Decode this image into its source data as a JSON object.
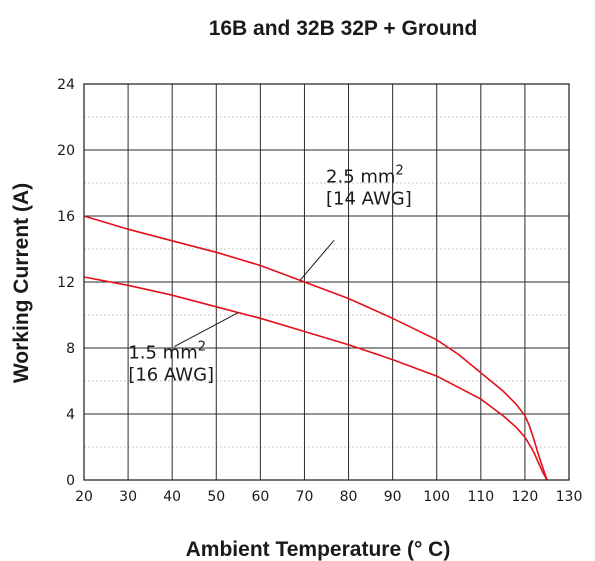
{
  "chart_data": {
    "type": "line",
    "title": "16B and 32B 32P + Ground",
    "xlabel": "Ambient Temperature (° C)",
    "ylabel": "Working Current (A)",
    "xlim": [
      20,
      130
    ],
    "ylim": [
      0,
      24
    ],
    "x_ticks": [
      20,
      30,
      40,
      50,
      60,
      70,
      80,
      90,
      100,
      110,
      120,
      130
    ],
    "y_ticks": [
      0,
      4,
      8,
      12,
      16,
      20,
      24
    ],
    "grid": true,
    "series": [
      {
        "name": "2.5 mm2 [14 AWG]",
        "color": "#e3101b",
        "x": [
          20,
          30,
          40,
          50,
          60,
          70,
          80,
          90,
          100,
          105,
          110,
          115,
          118,
          120,
          121,
          122,
          123,
          124,
          125
        ],
        "y": [
          16.0,
          15.2,
          14.5,
          13.8,
          13.0,
          12.0,
          11.0,
          9.8,
          8.5,
          7.6,
          6.5,
          5.4,
          4.6,
          3.9,
          3.3,
          2.5,
          1.6,
          0.8,
          0.0
        ]
      },
      {
        "name": "1.5 mm2 [16 AWG]",
        "color": "#e3101b",
        "x": [
          20,
          30,
          40,
          50,
          60,
          70,
          80,
          90,
          100,
          105,
          110,
          115,
          118,
          120,
          122,
          123,
          124,
          125
        ],
        "y": [
          12.3,
          11.8,
          11.2,
          10.5,
          9.8,
          9.0,
          8.2,
          7.3,
          6.3,
          5.6,
          4.9,
          3.9,
          3.2,
          2.6,
          1.7,
          1.1,
          0.5,
          0.0
        ]
      }
    ],
    "annotations": [
      {
        "line1": "2.5 mm",
        "sup": "2",
        "line2": "[14 AWG]",
        "series": 0,
        "point_x": 69
      },
      {
        "line1": "1.5 mm",
        "sup": "2",
        "line2": "[16 AWG]",
        "series": 1,
        "point_x": 55
      }
    ]
  }
}
